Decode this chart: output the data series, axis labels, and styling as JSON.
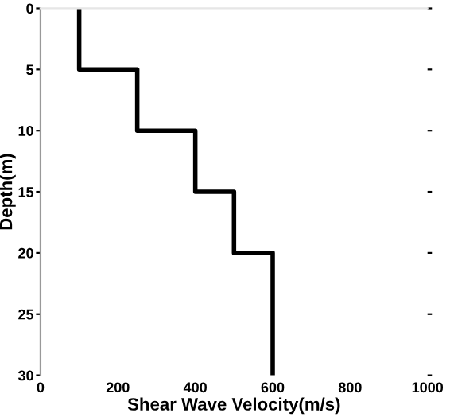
{
  "chart_data": {
    "type": "line",
    "xlabel": "Shear Wave Velocity(m/s)",
    "ylabel": "Depth(m)",
    "x": [
      100,
      100,
      250,
      250,
      400,
      400,
      500,
      500,
      600,
      600
    ],
    "series": [
      {
        "color": "#000000",
        "values": [
          0,
          5,
          5,
          10,
          10,
          15,
          15,
          20,
          20,
          30
        ]
      }
    ],
    "xlim": [
      0,
      1000
    ],
    "xticks": [
      0,
      200,
      400,
      600,
      800,
      1000
    ],
    "ylim": [
      30,
      0
    ],
    "yticks": [
      0,
      5,
      10,
      15,
      20,
      25,
      30
    ],
    "grid": false,
    "legend": false,
    "marker": "none",
    "line_style": "solid"
  }
}
